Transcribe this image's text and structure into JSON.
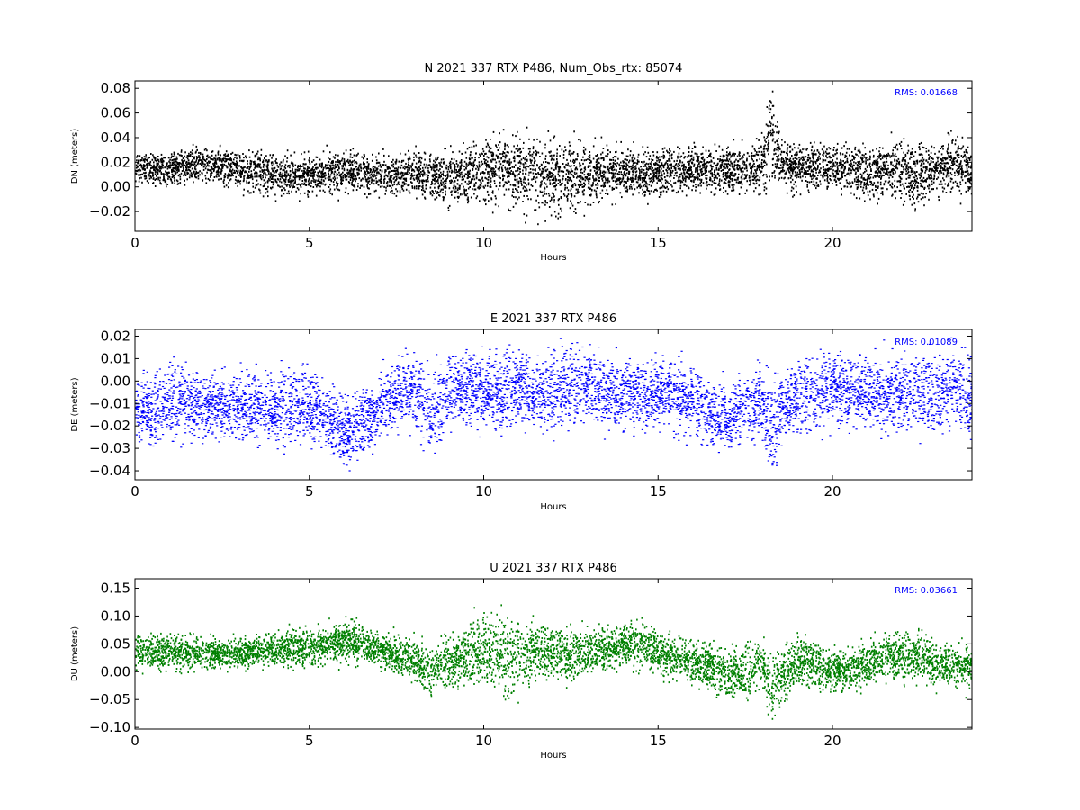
{
  "chart_data": [
    {
      "type": "scatter",
      "title": "N 2021 337 RTX  P486, Num_Obs_rtx: 85074",
      "xlabel": "Hours",
      "ylabel": "DN (meters)",
      "xlim": [
        0,
        24
      ],
      "ylim": [
        -0.036,
        0.086
      ],
      "xticks": [
        0,
        5,
        10,
        15,
        20
      ],
      "xtick_labels": [
        "0",
        "5",
        "10",
        "15",
        "20"
      ],
      "yticks": [
        -0.02,
        0.0,
        0.02,
        0.04,
        0.06,
        0.08
      ],
      "ytick_labels": [
        "−0.02",
        "0.00",
        "0.02",
        "0.04",
        "0.06",
        "0.08"
      ],
      "annotation": {
        "text": "RMS:  0.01668",
        "color": "#0000ff",
        "position": "top-right"
      },
      "series": [
        {
          "color": "#000000",
          "x": [
            0,
            0.5,
            1,
            1.5,
            2,
            2.5,
            3,
            3.5,
            4,
            4.5,
            5,
            5.5,
            6,
            6.5,
            7,
            7.5,
            8,
            8.5,
            9,
            9.5,
            10,
            10.5,
            11,
            11.5,
            12,
            12.5,
            13,
            13.5,
            14,
            14.5,
            15,
            15.5,
            16,
            16.5,
            17,
            17.5,
            18,
            18.2,
            18.5,
            19,
            19.5,
            20,
            20.5,
            21,
            21.5,
            22,
            22.5,
            23,
            23.5,
            24
          ],
          "center": [
            0.018,
            0.016,
            0.016,
            0.018,
            0.019,
            0.017,
            0.015,
            0.013,
            0.01,
            0.009,
            0.01,
            0.012,
            0.013,
            0.012,
            0.01,
            0.011,
            0.013,
            0.01,
            0.006,
            0.01,
            0.014,
            0.018,
            0.015,
            0.012,
            0.01,
            0.008,
            0.01,
            0.012,
            0.012,
            0.012,
            0.013,
            0.015,
            0.016,
            0.013,
            0.014,
            0.016,
            0.02,
            0.045,
            0.02,
            0.016,
            0.016,
            0.017,
            0.015,
            0.012,
            0.014,
            0.012,
            0.01,
            0.014,
            0.02,
            0.012
          ],
          "spread": [
            0.009,
            0.009,
            0.009,
            0.009,
            0.009,
            0.01,
            0.01,
            0.011,
            0.011,
            0.011,
            0.011,
            0.011,
            0.011,
            0.011,
            0.01,
            0.011,
            0.012,
            0.014,
            0.015,
            0.016,
            0.018,
            0.02,
            0.02,
            0.019,
            0.02,
            0.02,
            0.017,
            0.014,
            0.012,
            0.012,
            0.012,
            0.012,
            0.012,
            0.012,
            0.013,
            0.014,
            0.016,
            0.03,
            0.013,
            0.012,
            0.013,
            0.014,
            0.014,
            0.013,
            0.015,
            0.017,
            0.016,
            0.014,
            0.016,
            0.013
          ]
        }
      ]
    },
    {
      "type": "scatter",
      "title": "E 2021 337 RTX  P486",
      "xlabel": "Hours",
      "ylabel": "DE (meters)",
      "xlim": [
        0,
        24
      ],
      "ylim": [
        -0.044,
        0.023
      ],
      "xticks": [
        0,
        5,
        10,
        15,
        20
      ],
      "xtick_labels": [
        "0",
        "5",
        "10",
        "15",
        "20"
      ],
      "yticks": [
        -0.04,
        -0.03,
        -0.02,
        -0.01,
        0.0,
        0.01,
        0.02
      ],
      "ytick_labels": [
        "−0.04",
        "−0.03",
        "−0.02",
        "−0.01",
        "0.00",
        "0.01",
        "0.02"
      ],
      "annotation": {
        "text": "RMS:  0.01089",
        "color": "#0000ff",
        "position": "top-right"
      },
      "series": [
        {
          "color": "#0000ff",
          "x": [
            0,
            0.5,
            1,
            1.5,
            2,
            2.5,
            3,
            3.5,
            4,
            4.5,
            5,
            5.5,
            6,
            6.5,
            7,
            7.5,
            8,
            8.5,
            9,
            9.5,
            10,
            10.5,
            11,
            11.5,
            12,
            12.5,
            13,
            13.5,
            14,
            14.5,
            15,
            15.5,
            16,
            16.5,
            17,
            17.5,
            18,
            18.2,
            18.5,
            19,
            19.5,
            20,
            20.5,
            21,
            21.5,
            22,
            22.5,
            23,
            23.5,
            24
          ],
          "center": [
            -0.012,
            -0.015,
            -0.009,
            -0.01,
            -0.011,
            -0.012,
            -0.011,
            -0.011,
            -0.012,
            -0.011,
            -0.01,
            -0.017,
            -0.022,
            -0.02,
            -0.012,
            -0.006,
            -0.004,
            -0.014,
            -0.005,
            -0.003,
            -0.004,
            -0.003,
            -0.002,
            -0.006,
            -0.003,
            -0.001,
            -0.002,
            -0.005,
            -0.005,
            -0.006,
            -0.006,
            -0.006,
            -0.008,
            -0.016,
            -0.016,
            -0.012,
            -0.01,
            -0.025,
            -0.012,
            -0.008,
            -0.005,
            -0.003,
            -0.004,
            -0.005,
            -0.006,
            -0.004,
            -0.006,
            -0.005,
            -0.002,
            -0.01
          ],
          "spread": [
            0.01,
            0.01,
            0.012,
            0.011,
            0.009,
            0.009,
            0.01,
            0.01,
            0.01,
            0.011,
            0.011,
            0.011,
            0.011,
            0.011,
            0.01,
            0.01,
            0.012,
            0.012,
            0.011,
            0.011,
            0.011,
            0.012,
            0.011,
            0.011,
            0.012,
            0.012,
            0.011,
            0.01,
            0.01,
            0.01,
            0.01,
            0.01,
            0.01,
            0.01,
            0.01,
            0.01,
            0.01,
            0.018,
            0.01,
            0.011,
            0.012,
            0.012,
            0.011,
            0.01,
            0.011,
            0.012,
            0.012,
            0.012,
            0.013,
            0.012
          ]
        }
      ]
    },
    {
      "type": "scatter",
      "title": "U 2021 337 RTX  P486",
      "xlabel": "Hours",
      "ylabel": "DU (meters)",
      "xlim": [
        0,
        24
      ],
      "ylim": [
        -0.103,
        0.167
      ],
      "xticks": [
        0,
        5,
        10,
        15,
        20
      ],
      "xtick_labels": [
        "0",
        "5",
        "10",
        "15",
        "20"
      ],
      "yticks": [
        -0.1,
        -0.05,
        0.0,
        0.05,
        0.1,
        0.15
      ],
      "ytick_labels": [
        "−0.10",
        "−0.05",
        "0.00",
        "0.05",
        "0.10",
        "0.15"
      ],
      "annotation": {
        "text": "RMS:  0.03661",
        "color": "#0000ff",
        "position": "top-right"
      },
      "series": [
        {
          "color": "#008000",
          "x": [
            0,
            0.5,
            1,
            1.5,
            2,
            2.5,
            3,
            3.5,
            4,
            4.5,
            5,
            5.5,
            6,
            6.5,
            7,
            7.5,
            8,
            8.5,
            9,
            9.5,
            10,
            10.5,
            11,
            11.5,
            12,
            12.5,
            13,
            13.5,
            14,
            14.5,
            15,
            15.5,
            16,
            16.5,
            17,
            17.5,
            18,
            18.2,
            18.5,
            19,
            19.5,
            20,
            20.5,
            21,
            21.5,
            22,
            22.5,
            23,
            23.5,
            24
          ],
          "center": [
            0.04,
            0.035,
            0.04,
            0.035,
            0.035,
            0.035,
            0.035,
            0.038,
            0.04,
            0.045,
            0.045,
            0.05,
            0.058,
            0.05,
            0.04,
            0.03,
            0.025,
            0.0,
            0.02,
            0.03,
            0.045,
            0.03,
            0.03,
            0.04,
            0.035,
            0.03,
            0.035,
            0.04,
            0.05,
            0.05,
            0.035,
            0.025,
            0.02,
            0.01,
            -0.01,
            0.0,
            0.02,
            -0.04,
            0.0,
            0.02,
            0.015,
            0.005,
            0.005,
            0.015,
            0.03,
            0.03,
            0.025,
            0.015,
            0.015,
            0.01
          ],
          "spread": [
            0.02,
            0.02,
            0.022,
            0.02,
            0.018,
            0.018,
            0.018,
            0.018,
            0.02,
            0.022,
            0.022,
            0.022,
            0.024,
            0.022,
            0.02,
            0.022,
            0.025,
            0.03,
            0.03,
            0.032,
            0.045,
            0.05,
            0.048,
            0.035,
            0.03,
            0.03,
            0.028,
            0.026,
            0.026,
            0.028,
            0.026,
            0.026,
            0.026,
            0.028,
            0.03,
            0.03,
            0.028,
            0.04,
            0.035,
            0.03,
            0.028,
            0.026,
            0.026,
            0.026,
            0.028,
            0.03,
            0.028,
            0.026,
            0.026,
            0.026
          ]
        }
      ]
    }
  ]
}
